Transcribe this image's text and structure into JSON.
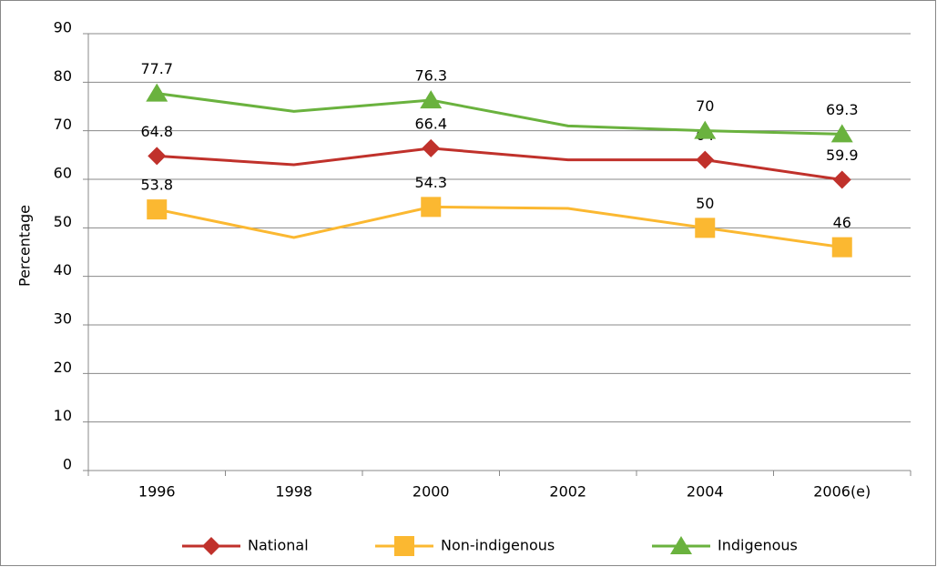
{
  "chart_data": {
    "type": "line",
    "y_label": "Percentage",
    "categories": [
      "1996",
      "1998",
      "2000",
      "2002",
      "2004",
      "2006(e)"
    ],
    "series": [
      {
        "name": "National",
        "color": "#c0312b",
        "marker": "diamond",
        "values": [
          64.8,
          63,
          66.4,
          64,
          64,
          59.9
        ],
        "value_labels": [
          "64.8",
          null,
          "66.4",
          null,
          "64",
          "59.9"
        ]
      },
      {
        "name": "Non-indigenous",
        "color": "#fbb831",
        "marker": "square",
        "values": [
          53.8,
          48,
          54.3,
          54,
          50,
          46
        ],
        "value_labels": [
          "53.8",
          null,
          "54.3",
          null,
          "50",
          "46"
        ]
      },
      {
        "name": "Indigenous",
        "color": "#6ab23e",
        "marker": "triangle",
        "values": [
          77.7,
          74,
          76.3,
          71,
          70,
          69.3
        ],
        "value_labels": [
          "77.7",
          null,
          "76.3",
          null,
          "70",
          "69.3"
        ]
      }
    ],
    "ylim": [
      0,
      90
    ],
    "yticks": [
      0,
      10,
      20,
      30,
      40,
      50,
      60,
      70,
      80,
      90
    ],
    "grid": true,
    "legend": "bottom"
  }
}
